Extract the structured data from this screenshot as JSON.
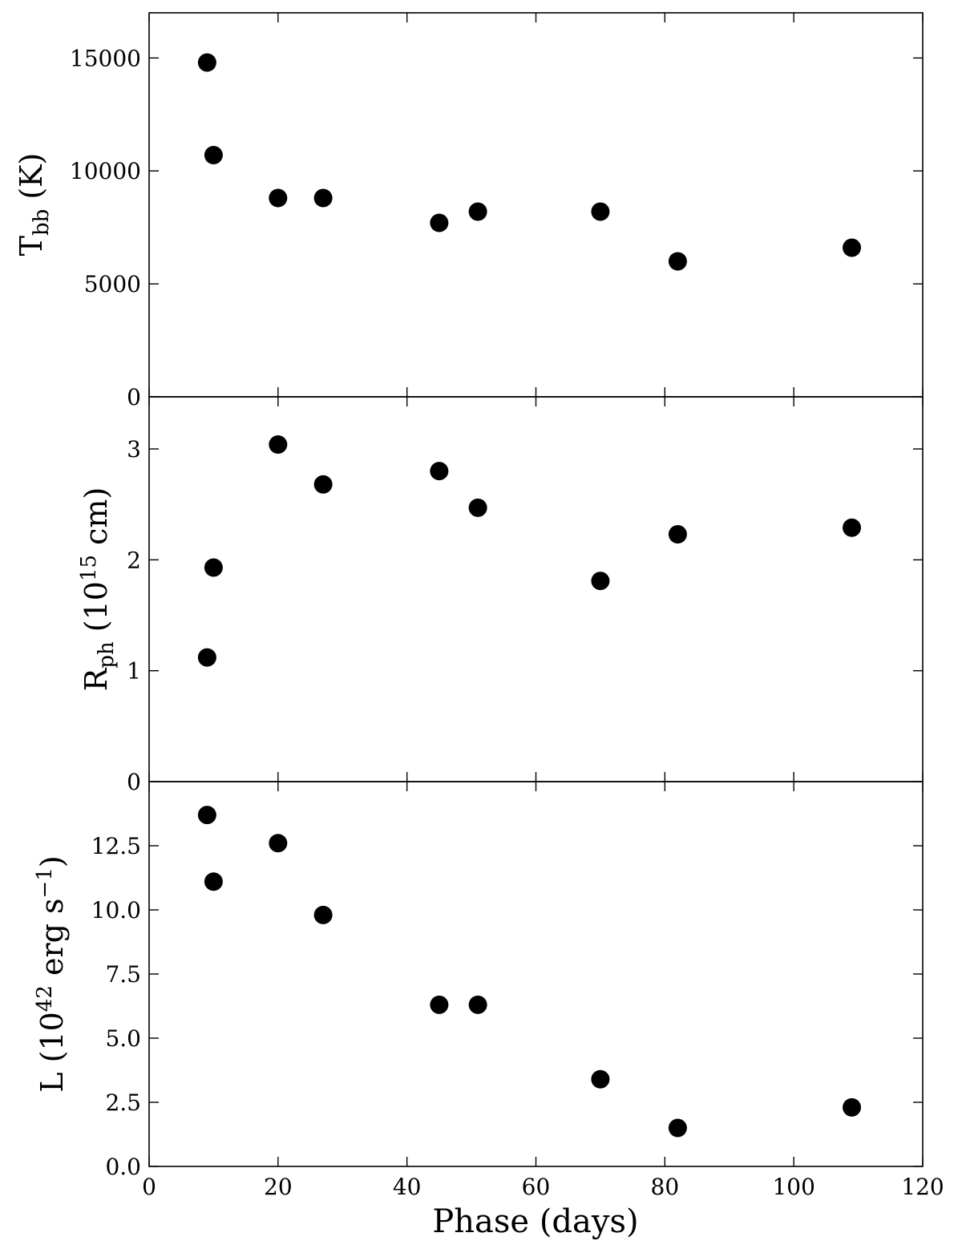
{
  "chart_data": {
    "type": "scatter",
    "xlabel": "Phase (days)",
    "xlim": [
      0,
      120
    ],
    "xticks": [
      0,
      20,
      40,
      60,
      80,
      100,
      120
    ],
    "x_tick_labels": [
      "0",
      "20",
      "40",
      "60",
      "80",
      "100",
      "120"
    ],
    "panels": [
      {
        "ylabel": {
          "main": "T",
          "sub": "bb",
          "rest": " (K)"
        },
        "ylim": [
          0,
          17000
        ],
        "yticks": [
          0,
          5000,
          10000,
          15000
        ],
        "y_tick_labels": [
          "0",
          "5000",
          "10000",
          "15000"
        ],
        "x": [
          9,
          10,
          20,
          27,
          45,
          51,
          70,
          82,
          109
        ],
        "y": [
          14800,
          10700,
          8800,
          8800,
          7700,
          8200,
          8200,
          6000,
          6600
        ]
      },
      {
        "ylabel": {
          "main": "R",
          "sub": "ph",
          "rest": " (10",
          "sup": "15",
          "rest2": " cm)"
        },
        "ylim": [
          0,
          3.47
        ],
        "yticks": [
          0,
          1,
          2,
          3
        ],
        "y_tick_labels": [
          "0",
          "1",
          "2",
          "3"
        ],
        "x": [
          9,
          10,
          20,
          27,
          45,
          51,
          70,
          82,
          109
        ],
        "y": [
          1.12,
          1.93,
          3.04,
          2.68,
          2.8,
          2.47,
          1.81,
          2.23,
          2.29
        ]
      },
      {
        "ylabel": {
          "main": "L (10",
          "sup1": "42",
          "mid": " erg s",
          "sup2": "−1",
          "end": ")"
        },
        "ylim": [
          0,
          15
        ],
        "yticks": [
          0,
          2.5,
          5,
          7.5,
          10,
          12.5
        ],
        "y_tick_labels": [
          "0.0",
          "2.5",
          "5.0",
          "7.5",
          "10.0",
          "12.5"
        ],
        "x": [
          9,
          10,
          20,
          27,
          45,
          51,
          70,
          82,
          109
        ],
        "y": [
          13.7,
          11.1,
          12.6,
          9.8,
          6.3,
          6.3,
          3.4,
          1.5,
          2.3
        ]
      }
    ]
  }
}
